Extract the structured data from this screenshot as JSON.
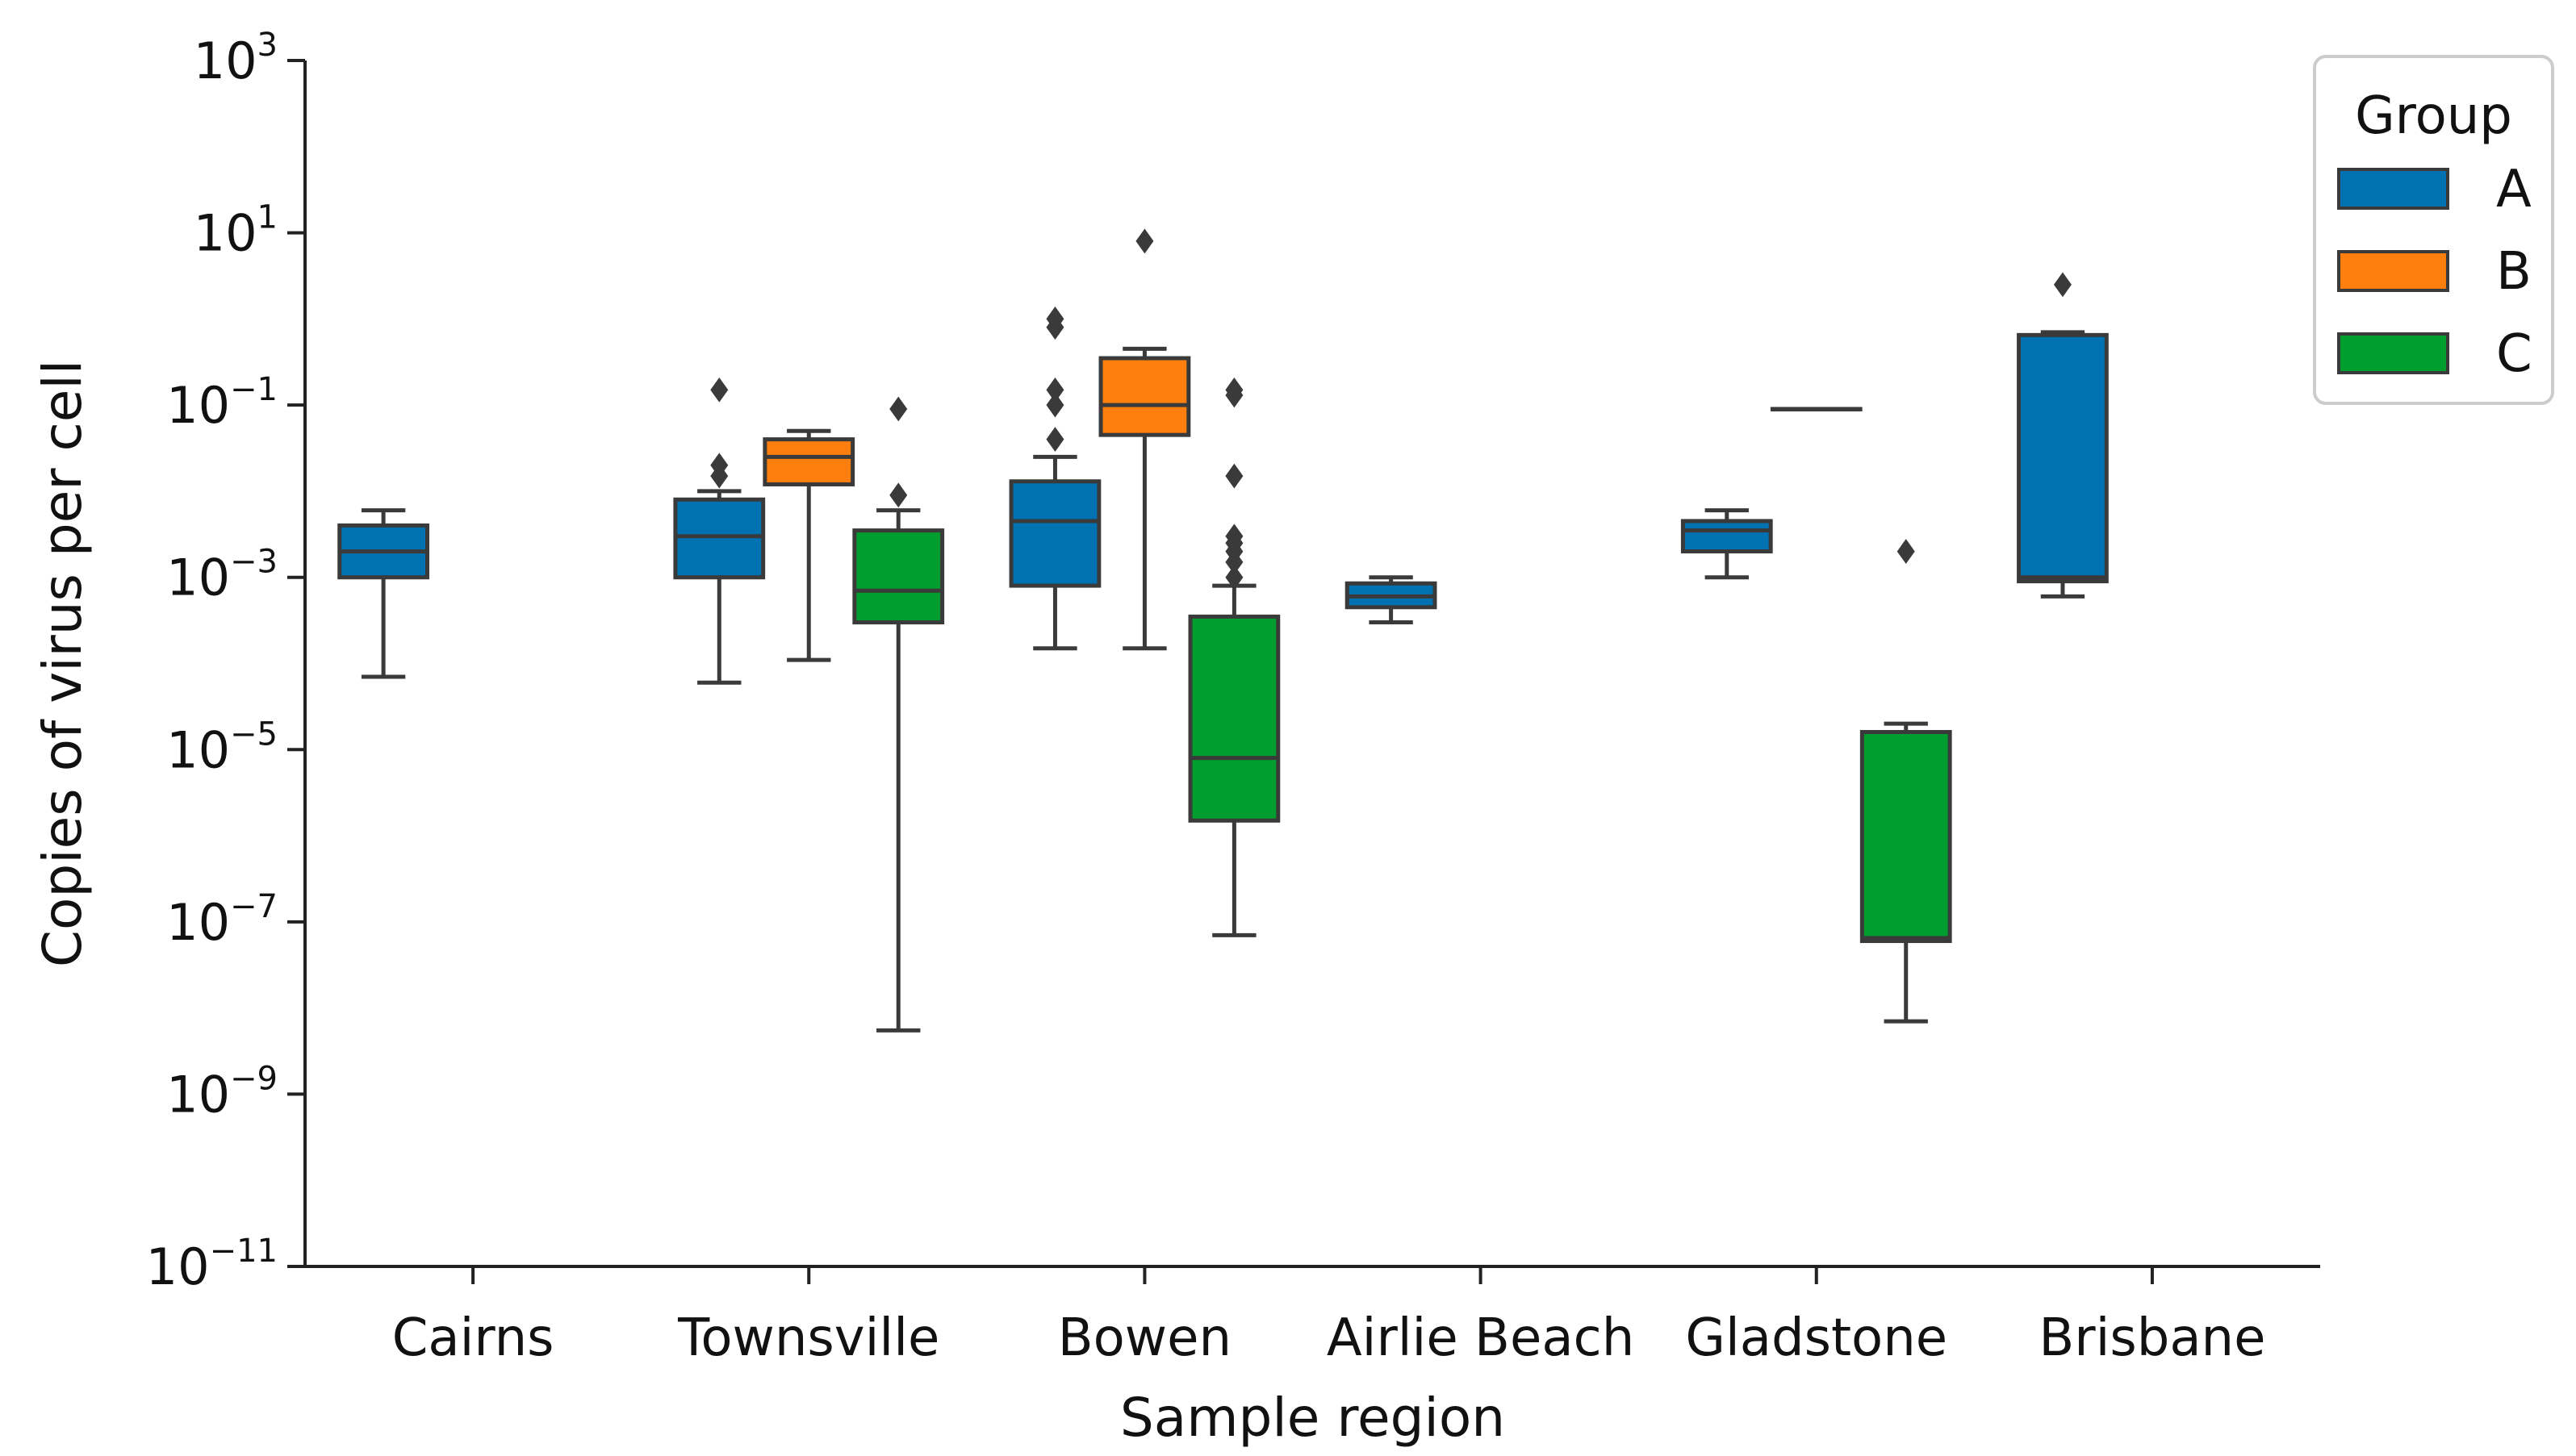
{
  "chart_data": {
    "type": "box",
    "xlabel": "Sample region",
    "ylabel": "Copies of virus per cell",
    "yscale": "log",
    "ylim": [
      1e-11,
      1000
    ],
    "yticks": [
      {
        "base": "10",
        "exp": "3"
      },
      {
        "base": "10",
        "exp": "1"
      },
      {
        "base": "10",
        "exp": "−1"
      },
      {
        "base": "10",
        "exp": "−3"
      },
      {
        "base": "10",
        "exp": "−5"
      },
      {
        "base": "10",
        "exp": "−7"
      },
      {
        "base": "10",
        "exp": "−9"
      },
      {
        "base": "10",
        "exp": "−11"
      }
    ],
    "categories": [
      "Cairns",
      "Townsville",
      "Bowen",
      "Airlie Beach",
      "Gladstone",
      "Brisbane"
    ],
    "grid": false,
    "legend": {
      "title": "Group",
      "position": "top-right",
      "entries": [
        {
          "name": "A",
          "color": "#0072b2"
        },
        {
          "name": "B",
          "color": "#ff7f0e"
        },
        {
          "name": "C",
          "color": "#009e2f"
        }
      ]
    },
    "series": [
      {
        "name": "A",
        "color": "#0072b2",
        "boxes": [
          {
            "category": "Cairns",
            "whisker_low": 7e-05,
            "q1": 0.001,
            "median": 0.002,
            "q3": 0.004,
            "whisker_high": 0.006,
            "outliers": []
          },
          {
            "category": "Townsville",
            "whisker_low": 6e-05,
            "q1": 0.001,
            "median": 0.003,
            "q3": 0.008,
            "whisker_high": 0.01,
            "outliers": [
              0.015,
              0.02,
              0.15
            ]
          },
          {
            "category": "Bowen",
            "whisker_low": 0.00015,
            "q1": 0.0008,
            "median": 0.0045,
            "q3": 0.013,
            "whisker_high": 0.025,
            "outliers": [
              0.04,
              0.1,
              0.15,
              0.8,
              1.0
            ]
          },
          {
            "category": "Airlie Beach",
            "whisker_low": 0.0003,
            "q1": 0.00045,
            "median": 0.0006,
            "q3": 0.00085,
            "whisker_high": 0.001,
            "outliers": []
          },
          {
            "category": "Gladstone",
            "whisker_low": 0.001,
            "q1": 0.002,
            "median": 0.0035,
            "q3": 0.0045,
            "whisker_high": 0.006,
            "outliers": []
          },
          {
            "category": "Brisbane",
            "whisker_low": 0.0006,
            "q1": 0.0009,
            "median": 0.001,
            "q3": 0.65,
            "whisker_high": 0.7,
            "outliers": [
              2.5
            ]
          }
        ]
      },
      {
        "name": "B",
        "color": "#ff7f0e",
        "boxes": [
          {
            "category": "Townsville",
            "whisker_low": 0.00011,
            "q1": 0.012,
            "median": 0.025,
            "q3": 0.04,
            "whisker_high": 0.05,
            "outliers": []
          },
          {
            "category": "Bowen",
            "whisker_low": 0.00015,
            "q1": 0.045,
            "median": 0.1,
            "q3": 0.35,
            "whisker_high": 0.45,
            "outliers": [
              8
            ]
          },
          {
            "category": "Gladstone",
            "whisker_low": 0.09,
            "q1": 0.09,
            "median": 0.09,
            "q3": 0.09,
            "whisker_high": 0.09,
            "outliers": []
          }
        ]
      },
      {
        "name": "C",
        "color": "#009e2f",
        "boxes": [
          {
            "category": "Townsville",
            "whisker_low": 5.5e-09,
            "q1": 0.0003,
            "median": 0.0007,
            "q3": 0.0035,
            "whisker_high": 0.006,
            "outliers": [
              0.009,
              0.09
            ]
          },
          {
            "category": "Bowen",
            "whisker_low": 7e-08,
            "q1": 1.5e-06,
            "median": 8e-06,
            "q3": 0.00035,
            "whisker_high": 0.0008,
            "outliers": [
              0.001,
              0.0015,
              0.002,
              0.0025,
              0.003,
              0.015,
              0.13,
              0.15
            ]
          },
          {
            "category": "Gladstone",
            "whisker_low": 7e-09,
            "q1": 6e-08,
            "median": 6.5e-08,
            "q3": 1.6e-05,
            "whisker_high": 2e-05,
            "outliers": [
              0.002
            ]
          }
        ]
      }
    ]
  }
}
